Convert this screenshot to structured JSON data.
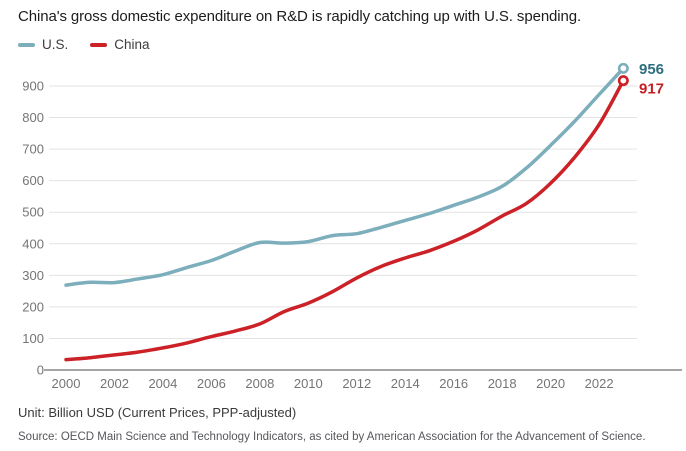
{
  "title": "China's gross domestic expenditure on R&D is rapidly catching up with U.S. spending.",
  "legend": {
    "items": [
      {
        "label": "U.S."
      },
      {
        "label": "China"
      }
    ]
  },
  "unit_note": "Unit: Billion USD (Current Prices, PPP-adjusted)",
  "source_note": "Source: OECD Main Science and Technology Indicators, as cited by American Association for the Advancement of Science.",
  "chart_data": {
    "type": "line",
    "title": "China's gross domestic expenditure on R&D is rapidly catching up with U.S. spending.",
    "x": [
      2000,
      2001,
      2002,
      2003,
      2004,
      2005,
      2006,
      2007,
      2008,
      2009,
      2010,
      2011,
      2012,
      2013,
      2014,
      2015,
      2016,
      2017,
      2018,
      2019,
      2020,
      2021,
      2022,
      2023
    ],
    "series": [
      {
        "name": "U.S.",
        "color": "#7caebc",
        "label_color": "#2d6e7f",
        "end_label": "956",
        "values": [
          269,
          278,
          277,
          289,
          302,
          325,
          347,
          377,
          404,
          402,
          407,
          426,
          432,
          452,
          474,
          496,
          522,
          548,
          582,
          640,
          712,
          789,
          873,
          956
        ]
      },
      {
        "name": "China",
        "color": "#cb2127",
        "label_color": "#c32026",
        "end_label": "917",
        "values": [
          33,
          39,
          48,
          57,
          70,
          86,
          106,
          124,
          146,
          185,
          212,
          248,
          292,
          328,
          355,
          378,
          408,
          444,
          488,
          528,
          592,
          675,
          778,
          917
        ]
      }
    ],
    "xticks": [
      2000,
      2002,
      2004,
      2006,
      2008,
      2010,
      2012,
      2014,
      2016,
      2018,
      2020,
      2022
    ],
    "yticks": [
      0,
      100,
      200,
      300,
      400,
      500,
      600,
      700,
      800,
      900
    ],
    "ylim": [
      0,
      900
    ],
    "xlabel": "",
    "ylabel": "",
    "grid": true,
    "legend_position": "top-left",
    "grid_color": "#e3e3e3",
    "axis_color": "#a5a5a5",
    "tick_color": "#757575"
  }
}
